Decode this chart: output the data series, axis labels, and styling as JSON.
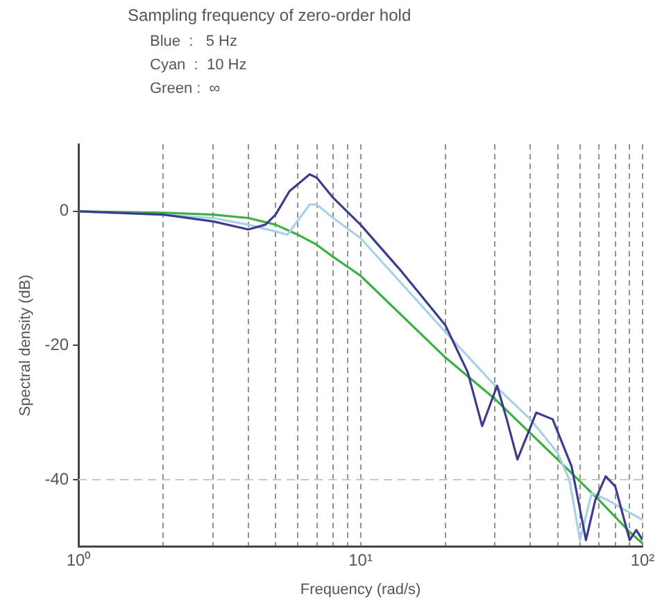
{
  "chart_data": {
    "type": "line",
    "title": "Sampling frequency of zero-order hold",
    "annotations": [
      "Blue  :   5 Hz",
      "Cyan  :  10 Hz",
      "Green :  ∞"
    ],
    "xlabel": "Frequency (rad/s)",
    "ylabel": "Spectral density (dB)",
    "log": "x",
    "grid": "x",
    "legend": false,
    "marker": "none",
    "line_style": "solid",
    "xlim": [
      1,
      100
    ],
    "ylim": [
      -50,
      10
    ],
    "xticks": [
      {
        "value": 1,
        "label": "10⁰"
      },
      {
        "value": 2,
        "label": null
      },
      {
        "value": 3,
        "label": null
      },
      {
        "value": 4,
        "label": null
      },
      {
        "value": 5,
        "label": null
      },
      {
        "value": 6,
        "label": null
      },
      {
        "value": 7,
        "label": null
      },
      {
        "value": 8,
        "label": null
      },
      {
        "value": 9,
        "label": null
      },
      {
        "value": 10,
        "label": "10¹"
      },
      {
        "value": 20,
        "label": null
      },
      {
        "value": 30,
        "label": null
      },
      {
        "value": 40,
        "label": null
      },
      {
        "value": 50,
        "label": null
      },
      {
        "value": 60,
        "label": null
      },
      {
        "value": 70,
        "label": null
      },
      {
        "value": 80,
        "label": null
      },
      {
        "value": 90,
        "label": null
      },
      {
        "value": 100,
        "label": "10²"
      }
    ],
    "yticks": [
      -40,
      -20,
      0
    ],
    "ref_lines": [
      {
        "axis": "y",
        "value": -40,
        "color": "#c8c8c8",
        "line_style": "dashed"
      }
    ],
    "series": [
      {
        "color": "#3c3c8e",
        "x": [
          1,
          2,
          3,
          4,
          4.6,
          5,
          5.6,
          6.6,
          7,
          8,
          10,
          14,
          20,
          24,
          27,
          30.5,
          33,
          36,
          42,
          48,
          56,
          63,
          68,
          74,
          80,
          90,
          95,
          100
        ],
        "values": [
          0,
          -0.5,
          -1.5,
          -2.7,
          -2,
          -0.5,
          3,
          5.5,
          5,
          2,
          -2,
          -9,
          -17,
          -24,
          -32,
          -26,
          -31,
          -37,
          -30,
          -31,
          -38,
          -49,
          -43,
          -39.5,
          -41,
          -49,
          -47.5,
          -49
        ]
      },
      {
        "color": "#a8d0e6",
        "x": [
          1,
          2,
          3,
          4,
          5,
          5.5,
          6.6,
          7,
          8,
          10,
          20,
          30,
          40,
          50,
          55,
          60,
          66,
          75,
          100
        ],
        "values": [
          0,
          -0.5,
          -1,
          -2,
          -3,
          -3.5,
          1,
          1,
          -1,
          -4,
          -18,
          -26,
          -31,
          -36,
          -40,
          -49,
          -42,
          -43,
          -46
        ]
      },
      {
        "color": "#3cb043",
        "x": [
          1,
          2,
          3,
          4,
          5,
          6,
          7,
          8,
          10,
          20,
          30,
          50,
          70,
          90,
          100
        ],
        "values": [
          0,
          -0.2,
          -0.5,
          -1,
          -2,
          -3.5,
          -5,
          -6.8,
          -9.6,
          -21.8,
          -28,
          -37,
          -43,
          -47.8,
          -49.5
        ]
      }
    ]
  }
}
